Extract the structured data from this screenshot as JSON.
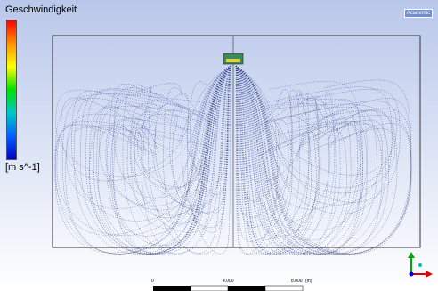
{
  "badge": "Academic",
  "legend": {
    "title": "Geschwindigkeit",
    "unit": "[m s^-1]"
  },
  "scale_bar": {
    "labels": [
      "0",
      "4.000",
      "8.000"
    ],
    "unit": "(m)"
  }
}
